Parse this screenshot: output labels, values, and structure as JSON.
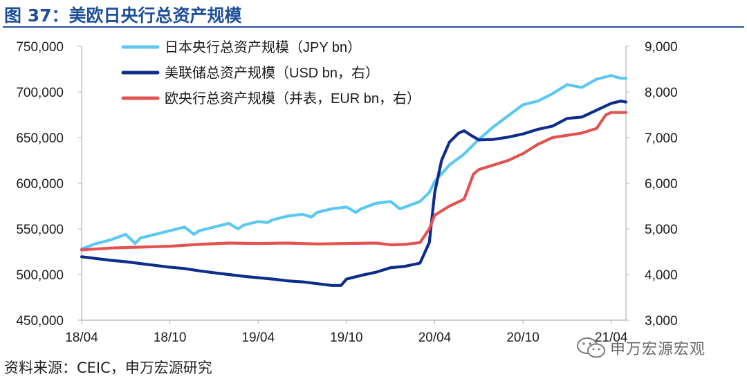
{
  "figure": {
    "title": "图 37：美欧日央行总资产规模",
    "source": "资料来源：CEIC，申万宏源研究",
    "watermark": "申万宏源宏观"
  },
  "colors": {
    "title": "#1f4f99",
    "boj": "#5bc8f2",
    "fed": "#0d2d8c",
    "ecb": "#e35252"
  },
  "chart_data": {
    "type": "line",
    "x_ticks": [
      "18/04",
      "18/10",
      "19/04",
      "19/10",
      "20/04",
      "20/10",
      "21/04"
    ],
    "x_range": [
      "2018-04",
      "2021-05"
    ],
    "y_left": {
      "range": [
        450000,
        750000
      ],
      "ticks": [
        450000,
        500000,
        550000,
        600000,
        650000,
        700000,
        750000
      ],
      "tick_labels": [
        "450,000",
        "500,000",
        "550,000",
        "600,000",
        "650,000",
        "700,000",
        "750,000"
      ]
    },
    "y_right": {
      "range": [
        3000,
        9000
      ],
      "ticks": [
        3000,
        4000,
        5000,
        6000,
        7000,
        8000,
        9000
      ],
      "tick_labels": [
        "3,000",
        "4,000",
        "5,000",
        "6,000",
        "7,000",
        "8,000",
        "9,000"
      ]
    },
    "grid": false,
    "legend_position": "top-left",
    "series": [
      {
        "name": "日本央行总资产规模（JPY bn）",
        "axis": "left",
        "color": "#5bc8f2",
        "points": [
          [
            "2018-04",
            528000
          ],
          [
            "2018-05",
            534000
          ],
          [
            "2018-06",
            538000
          ],
          [
            "2018-07",
            544000
          ],
          [
            "2018-07-20",
            534000
          ],
          [
            "2018-08",
            540000
          ],
          [
            "2018-09",
            544000
          ],
          [
            "2018-10",
            548000
          ],
          [
            "2018-11",
            552000
          ],
          [
            "2018-11-20",
            544000
          ],
          [
            "2018-12",
            548000
          ],
          [
            "2019-01",
            552000
          ],
          [
            "2019-02",
            556000
          ],
          [
            "2019-02-20",
            550000
          ],
          [
            "2019-03",
            554000
          ],
          [
            "2019-04",
            558000
          ],
          [
            "2019-04-20",
            557000
          ],
          [
            "2019-05",
            560000
          ],
          [
            "2019-06",
            564000
          ],
          [
            "2019-07",
            566000
          ],
          [
            "2019-07-20",
            563000
          ],
          [
            "2019-08",
            568000
          ],
          [
            "2019-09",
            572000
          ],
          [
            "2019-10",
            574000
          ],
          [
            "2019-10-20",
            568000
          ],
          [
            "2019-11",
            572000
          ],
          [
            "2019-12",
            578000
          ],
          [
            "2020-01",
            580000
          ],
          [
            "2020-01-20",
            572000
          ],
          [
            "2020-02",
            574000
          ],
          [
            "2020-03",
            580000
          ],
          [
            "2020-03-20",
            590000
          ],
          [
            "2020-04",
            602000
          ],
          [
            "2020-05",
            620000
          ],
          [
            "2020-06",
            632000
          ],
          [
            "2020-07",
            648000
          ],
          [
            "2020-08",
            662000
          ],
          [
            "2020-09",
            674000
          ],
          [
            "2020-10",
            686000
          ],
          [
            "2020-11",
            690000
          ],
          [
            "2020-12",
            698000
          ],
          [
            "2021-01",
            708000
          ],
          [
            "2021-02",
            705000
          ],
          [
            "2021-03",
            714000
          ],
          [
            "2021-04",
            718000
          ],
          [
            "2021-04-20",
            715000
          ],
          [
            "2021-05",
            715000
          ]
        ]
      },
      {
        "name": "美联储总资产规模（USD bn，右）",
        "axis": "right",
        "color": "#0d2d8c",
        "points": [
          [
            "2018-04",
            4390
          ],
          [
            "2018-05",
            4350
          ],
          [
            "2018-06",
            4310
          ],
          [
            "2018-07",
            4280
          ],
          [
            "2018-08",
            4240
          ],
          [
            "2018-09",
            4200
          ],
          [
            "2018-10",
            4160
          ],
          [
            "2018-11",
            4130
          ],
          [
            "2018-12",
            4080
          ],
          [
            "2019-01",
            4040
          ],
          [
            "2019-02",
            4000
          ],
          [
            "2019-03",
            3960
          ],
          [
            "2019-04",
            3930
          ],
          [
            "2019-05",
            3900
          ],
          [
            "2019-06",
            3860
          ],
          [
            "2019-07",
            3840
          ],
          [
            "2019-08",
            3800
          ],
          [
            "2019-09",
            3760
          ],
          [
            "2019-09-20",
            3760
          ],
          [
            "2019-10",
            3900
          ],
          [
            "2019-11",
            3980
          ],
          [
            "2019-12",
            4050
          ],
          [
            "2020-01",
            4150
          ],
          [
            "2020-02",
            4180
          ],
          [
            "2020-03",
            4250
          ],
          [
            "2020-03-20",
            4700
          ],
          [
            "2020-04",
            5800
          ],
          [
            "2020-04-15",
            6500
          ],
          [
            "2020-05",
            6900
          ],
          [
            "2020-05-20",
            7100
          ],
          [
            "2020-06",
            7150
          ],
          [
            "2020-06-15",
            7050
          ],
          [
            "2020-07",
            6950
          ],
          [
            "2020-08",
            6960
          ],
          [
            "2020-09",
            7010
          ],
          [
            "2020-10",
            7080
          ],
          [
            "2020-11",
            7180
          ],
          [
            "2020-12",
            7250
          ],
          [
            "2021-01",
            7420
          ],
          [
            "2021-02",
            7450
          ],
          [
            "2021-03",
            7600
          ],
          [
            "2021-04",
            7750
          ],
          [
            "2021-04-20",
            7800
          ],
          [
            "2021-05",
            7780
          ]
        ]
      },
      {
        "name": "欧央行总资产规模（并表，EUR bn，右）",
        "axis": "right",
        "color": "#e35252",
        "points": [
          [
            "2018-04",
            4540
          ],
          [
            "2018-06",
            4580
          ],
          [
            "2018-08",
            4600
          ],
          [
            "2018-10",
            4620
          ],
          [
            "2018-12",
            4660
          ],
          [
            "2019-02",
            4690
          ],
          [
            "2019-04",
            4680
          ],
          [
            "2019-06",
            4690
          ],
          [
            "2019-08",
            4670
          ],
          [
            "2019-10",
            4680
          ],
          [
            "2019-12",
            4690
          ],
          [
            "2020-01",
            4650
          ],
          [
            "2020-02",
            4660
          ],
          [
            "2020-03",
            4700
          ],
          [
            "2020-03-20",
            5000
          ],
          [
            "2020-04",
            5300
          ],
          [
            "2020-05",
            5500
          ],
          [
            "2020-06",
            5650
          ],
          [
            "2020-06-20",
            6200
          ],
          [
            "2020-07",
            6300
          ],
          [
            "2020-08",
            6400
          ],
          [
            "2020-09",
            6500
          ],
          [
            "2020-10",
            6650
          ],
          [
            "2020-11",
            6850
          ],
          [
            "2020-12",
            7000
          ],
          [
            "2021-01",
            7050
          ],
          [
            "2021-02",
            7100
          ],
          [
            "2021-03",
            7200
          ],
          [
            "2021-03-20",
            7500
          ],
          [
            "2021-04",
            7550
          ],
          [
            "2021-05",
            7550
          ]
        ]
      }
    ]
  }
}
